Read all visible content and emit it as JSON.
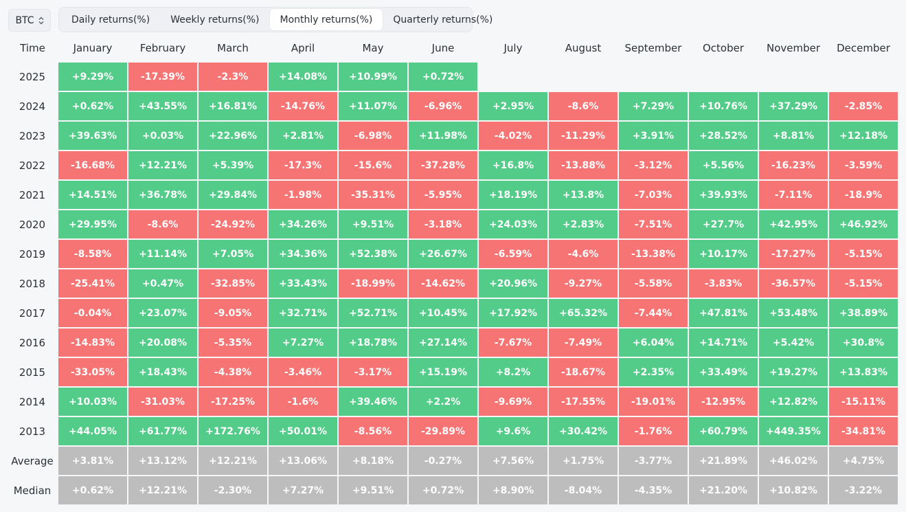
{
  "asset_select": {
    "label": "BTC",
    "icon": "chevron-updown-icon"
  },
  "tabs": [
    {
      "label": "Daily returns(%)",
      "active": false
    },
    {
      "label": "Weekly returns(%)",
      "active": false
    },
    {
      "label": "Monthly returns(%)",
      "active": true
    },
    {
      "label": "Quarterly returns(%)",
      "active": false
    }
  ],
  "table": {
    "corner_label": "Time",
    "months": [
      "January",
      "February",
      "March",
      "April",
      "May",
      "June",
      "July",
      "August",
      "September",
      "October",
      "November",
      "December"
    ],
    "rows": [
      {
        "year": "2025",
        "values": [
          "+9.29%",
          "-17.39%",
          "-2.3%",
          "+14.08%",
          "+10.99%",
          "+0.72%",
          "",
          "",
          "",
          "",
          "",
          ""
        ]
      },
      {
        "year": "2024",
        "values": [
          "+0.62%",
          "+43.55%",
          "+16.81%",
          "-14.76%",
          "+11.07%",
          "-6.96%",
          "+2.95%",
          "-8.6%",
          "+7.29%",
          "+10.76%",
          "+37.29%",
          "-2.85%"
        ]
      },
      {
        "year": "2023",
        "values": [
          "+39.63%",
          "+0.03%",
          "+22.96%",
          "+2.81%",
          "-6.98%",
          "+11.98%",
          "-4.02%",
          "-11.29%",
          "+3.91%",
          "+28.52%",
          "+8.81%",
          "+12.18%"
        ]
      },
      {
        "year": "2022",
        "values": [
          "-16.68%",
          "+12.21%",
          "+5.39%",
          "-17.3%",
          "-15.6%",
          "-37.28%",
          "+16.8%",
          "-13.88%",
          "-3.12%",
          "+5.56%",
          "-16.23%",
          "-3.59%"
        ]
      },
      {
        "year": "2021",
        "values": [
          "+14.51%",
          "+36.78%",
          "+29.84%",
          "-1.98%",
          "-35.31%",
          "-5.95%",
          "+18.19%",
          "+13.8%",
          "-7.03%",
          "+39.93%",
          "-7.11%",
          "-18.9%"
        ]
      },
      {
        "year": "2020",
        "values": [
          "+29.95%",
          "-8.6%",
          "-24.92%",
          "+34.26%",
          "+9.51%",
          "-3.18%",
          "+24.03%",
          "+2.83%",
          "-7.51%",
          "+27.7%",
          "+42.95%",
          "+46.92%"
        ]
      },
      {
        "year": "2019",
        "values": [
          "-8.58%",
          "+11.14%",
          "+7.05%",
          "+34.36%",
          "+52.38%",
          "+26.67%",
          "-6.59%",
          "-4.6%",
          "-13.38%",
          "+10.17%",
          "-17.27%",
          "-5.15%"
        ]
      },
      {
        "year": "2018",
        "values": [
          "-25.41%",
          "+0.47%",
          "-32.85%",
          "+33.43%",
          "-18.99%",
          "-14.62%",
          "+20.96%",
          "-9.27%",
          "-5.58%",
          "-3.83%",
          "-36.57%",
          "-5.15%"
        ]
      },
      {
        "year": "2017",
        "values": [
          "-0.04%",
          "+23.07%",
          "-9.05%",
          "+32.71%",
          "+52.71%",
          "+10.45%",
          "+17.92%",
          "+65.32%",
          "-7.44%",
          "+47.81%",
          "+53.48%",
          "+38.89%"
        ]
      },
      {
        "year": "2016",
        "values": [
          "-14.83%",
          "+20.08%",
          "-5.35%",
          "+7.27%",
          "+18.78%",
          "+27.14%",
          "-7.67%",
          "-7.49%",
          "+6.04%",
          "+14.71%",
          "+5.42%",
          "+30.8%"
        ]
      },
      {
        "year": "2015",
        "values": [
          "-33.05%",
          "+18.43%",
          "-4.38%",
          "-3.46%",
          "-3.17%",
          "+15.19%",
          "+8.2%",
          "-18.67%",
          "+2.35%",
          "+33.49%",
          "+19.27%",
          "+13.83%"
        ]
      },
      {
        "year": "2014",
        "values": [
          "+10.03%",
          "-31.03%",
          "-17.25%",
          "-1.6%",
          "+39.46%",
          "+2.2%",
          "-9.69%",
          "-17.55%",
          "-19.01%",
          "-12.95%",
          "+12.82%",
          "-15.11%"
        ]
      },
      {
        "year": "2013",
        "values": [
          "+44.05%",
          "+61.77%",
          "+172.76%",
          "+50.01%",
          "-8.56%",
          "-29.89%",
          "+9.6%",
          "+30.42%",
          "-1.76%",
          "+60.79%",
          "+449.35%",
          "-34.81%"
        ]
      }
    ],
    "summary_rows": [
      {
        "label": "Average",
        "values": [
          "+3.81%",
          "+13.12%",
          "+12.21%",
          "+13.06%",
          "+8.18%",
          "-0.27%",
          "+7.56%",
          "+1.75%",
          "-3.77%",
          "+21.89%",
          "+46.02%",
          "+4.75%"
        ]
      },
      {
        "label": "Median",
        "values": [
          "+0.62%",
          "+12.21%",
          "-2.30%",
          "+7.27%",
          "+9.51%",
          "+0.72%",
          "+8.90%",
          "-8.04%",
          "-4.35%",
          "+21.20%",
          "+10.82%",
          "-3.22%"
        ]
      }
    ]
  },
  "colors": {
    "positive": "#52cc88",
    "negative": "#f77474",
    "summary": "#bdbdbd",
    "background": "#f6f7f8"
  }
}
